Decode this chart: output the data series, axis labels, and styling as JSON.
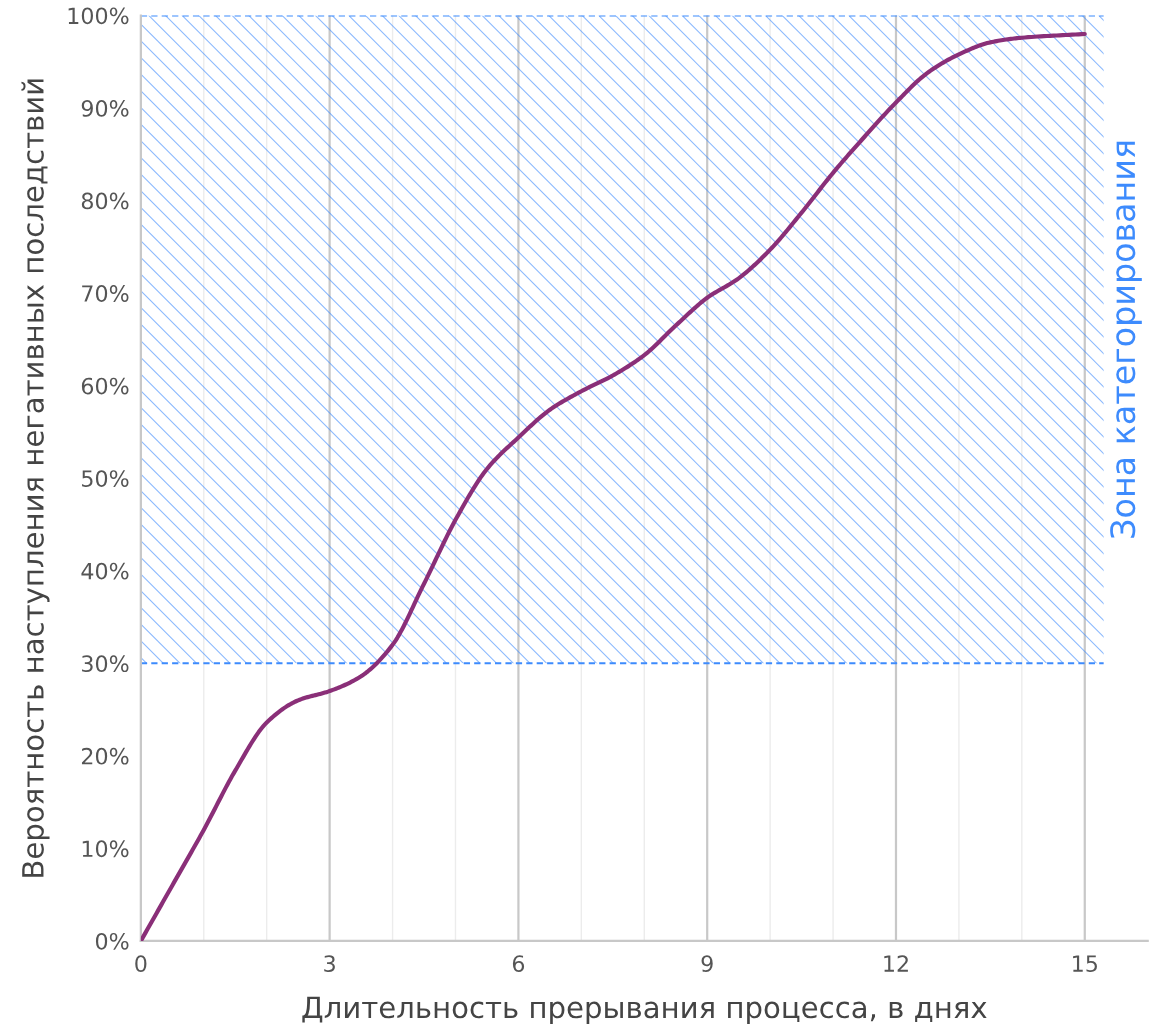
{
  "chart_data": {
    "type": "line",
    "xlabel": "Длительность прерывания процесса, в днях",
    "ylabel": "Вероятность наступления негативных последствий",
    "x": [
      0,
      0.5,
      1,
      1.5,
      2,
      2.5,
      3,
      3.5,
      4,
      4.5,
      5,
      5.5,
      6,
      6.5,
      7,
      7.5,
      8,
      8.5,
      9,
      9.5,
      10,
      10.5,
      11,
      11.5,
      12,
      12.5,
      13,
      13.5,
      14,
      15
    ],
    "series": [
      {
        "color": "#8a2f78",
        "values": [
          0,
          6,
          12,
          18.4,
          23.6,
          26,
          27,
          28.6,
          32,
          38.6,
          45.5,
          51,
          54.4,
          57.4,
          59.4,
          61.1,
          63.3,
          66.5,
          69.5,
          71.6,
          74.7,
          78.7,
          83,
          86.9,
          90.6,
          93.8,
          95.8,
          97.1,
          97.6,
          98
        ]
      }
    ],
    "xlim": [
      0,
      16
    ],
    "xticks": [
      0,
      {
        "value": 1,
        "label": null
      },
      {
        "value": 2,
        "label": null
      },
      3,
      {
        "value": 4,
        "label": null
      },
      {
        "value": 5,
        "label": null
      },
      6,
      {
        "value": 7,
        "label": null
      },
      {
        "value": 8,
        "label": null
      },
      9,
      {
        "value": 10,
        "label": null
      },
      {
        "value": 11,
        "label": null
      },
      12,
      {
        "value": 13,
        "label": null
      },
      {
        "value": 14,
        "label": null
      },
      15
    ],
    "ylim": [
      0,
      100
    ],
    "yticks": [
      {
        "value": 0,
        "label": "0%"
      },
      {
        "value": 10,
        "label": "10%"
      },
      {
        "value": 20,
        "label": "20%"
      },
      {
        "value": 30,
        "label": "30%"
      },
      {
        "value": 40,
        "label": "40%"
      },
      {
        "value": 50,
        "label": "50%"
      },
      {
        "value": 60,
        "label": "60%"
      },
      {
        "value": 70,
        "label": "70%"
      },
      {
        "value": 80,
        "label": "80%"
      },
      {
        "value": 90,
        "label": "90%"
      },
      {
        "value": 100,
        "label": "100%"
      }
    ],
    "bands": [
      {
        "axis": "y",
        "from": 30,
        "to": 100,
        "label": "Зона категорирования",
        "color": "#3d8bfd"
      }
    ],
    "ref_lines": [
      {
        "axis": "y",
        "value": 30,
        "color": "#3d8bfd",
        "line_style": "dashed"
      },
      {
        "axis": "y",
        "value": 100,
        "color": "#3d8bfd",
        "line_style": "dashed"
      }
    ],
    "grid": "x",
    "marker": "none",
    "line_style": "solid"
  }
}
